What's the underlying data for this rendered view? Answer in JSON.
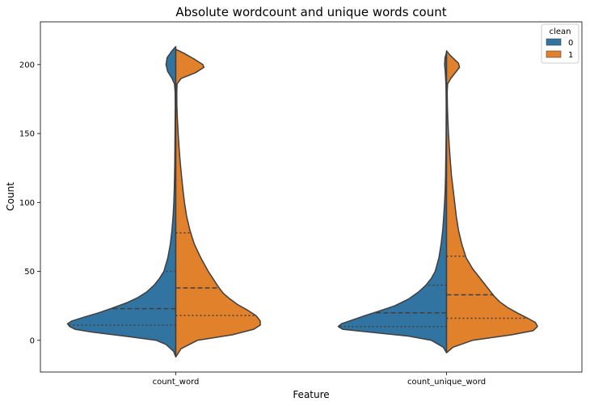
{
  "chart_data": {
    "type": "violin",
    "split": true,
    "title": "Absolute wordcount and unique words count",
    "xlabel": "Feature",
    "ylabel": "Count",
    "ylim": [
      -23,
      231
    ],
    "yticks": [
      0,
      50,
      100,
      150,
      200
    ],
    "categories": [
      "count_word",
      "count_unique_word"
    ],
    "legend": {
      "title": "clean",
      "position": "top-right",
      "entries": [
        {
          "label": "0",
          "color": "#3274a1"
        },
        {
          "label": "1",
          "color": "#e1812c"
        }
      ]
    },
    "violins": [
      {
        "category": "count_word",
        "hue": "0",
        "color": "#3274a1",
        "profile": [
          [
            -12,
            0
          ],
          [
            -8,
            0.02
          ],
          [
            -3,
            0.09
          ],
          [
            0,
            0.18
          ],
          [
            3,
            0.47
          ],
          [
            6,
            0.78
          ],
          [
            8,
            0.93
          ],
          [
            10,
            0.98
          ],
          [
            12,
            1.0
          ],
          [
            14,
            0.96
          ],
          [
            17,
            0.84
          ],
          [
            20,
            0.71
          ],
          [
            23,
            0.6
          ],
          [
            27,
            0.46
          ],
          [
            31,
            0.35
          ],
          [
            35,
            0.27
          ],
          [
            40,
            0.2
          ],
          [
            45,
            0.15
          ],
          [
            50,
            0.11
          ],
          [
            60,
            0.073
          ],
          [
            70,
            0.05
          ],
          [
            80,
            0.035
          ],
          [
            90,
            0.025
          ],
          [
            100,
            0.018
          ],
          [
            110,
            0.014
          ],
          [
            120,
            0.011
          ],
          [
            130,
            0.009
          ],
          [
            140,
            0.008
          ],
          [
            150,
            0.007
          ],
          [
            160,
            0.006
          ],
          [
            170,
            0.005
          ],
          [
            180,
            0.006
          ],
          [
            186,
            0.012
          ],
          [
            190,
            0.035
          ],
          [
            195,
            0.075
          ],
          [
            200,
            0.09
          ],
          [
            205,
            0.08
          ],
          [
            210,
            0.035
          ],
          [
            213,
            0
          ]
        ],
        "quartiles": [
          11,
          23,
          50
        ]
      },
      {
        "category": "count_word",
        "hue": "1",
        "color": "#e1812c",
        "profile": [
          [
            -12,
            0
          ],
          [
            -6,
            0.05
          ],
          [
            0,
            0.2
          ],
          [
            4,
            0.52
          ],
          [
            8,
            0.72
          ],
          [
            11,
            0.78
          ],
          [
            14,
            0.78
          ],
          [
            18,
            0.74
          ],
          [
            22,
            0.66
          ],
          [
            26,
            0.57
          ],
          [
            30,
            0.5
          ],
          [
            34,
            0.44
          ],
          [
            38,
            0.4
          ],
          [
            44,
            0.35
          ],
          [
            50,
            0.3
          ],
          [
            60,
            0.23
          ],
          [
            70,
            0.17
          ],
          [
            80,
            0.13
          ],
          [
            90,
            0.1
          ],
          [
            100,
            0.08
          ],
          [
            110,
            0.065
          ],
          [
            120,
            0.052
          ],
          [
            130,
            0.04
          ],
          [
            140,
            0.03
          ],
          [
            150,
            0.022
          ],
          [
            160,
            0.015
          ],
          [
            170,
            0.01
          ],
          [
            180,
            0.009
          ],
          [
            186,
            0.012
          ],
          [
            190,
            0.05
          ],
          [
            194,
            0.18
          ],
          [
            198,
            0.26
          ],
          [
            200,
            0.25
          ],
          [
            204,
            0.17
          ],
          [
            208,
            0.08
          ],
          [
            210,
            0.03
          ],
          [
            211,
            0
          ]
        ],
        "quartiles": [
          18,
          38,
          78
        ]
      },
      {
        "category": "count_unique_word",
        "hue": "0",
        "color": "#3274a1",
        "profile": [
          [
            -9,
            0
          ],
          [
            -5,
            0.03
          ],
          [
            0,
            0.14
          ],
          [
            3,
            0.35
          ],
          [
            6,
            0.72
          ],
          [
            8,
            0.96
          ],
          [
            10,
            1.0
          ],
          [
            12,
            0.97
          ],
          [
            15,
            0.86
          ],
          [
            18,
            0.75
          ],
          [
            21,
            0.63
          ],
          [
            25,
            0.48
          ],
          [
            30,
            0.35
          ],
          [
            35,
            0.26
          ],
          [
            40,
            0.19
          ],
          [
            45,
            0.14
          ],
          [
            50,
            0.105
          ],
          [
            60,
            0.07
          ],
          [
            70,
            0.05
          ],
          [
            80,
            0.035
          ],
          [
            90,
            0.026
          ],
          [
            100,
            0.018
          ],
          [
            110,
            0.012
          ],
          [
            120,
            0.009
          ],
          [
            130,
            0.007
          ],
          [
            140,
            0.005
          ],
          [
            150,
            0.004
          ],
          [
            170,
            0.003
          ],
          [
            185,
            0.005
          ],
          [
            195,
            0.012
          ],
          [
            200,
            0.018
          ],
          [
            205,
            0.014
          ],
          [
            209,
            0
          ]
        ],
        "quartiles": [
          10,
          20,
          40
        ]
      },
      {
        "category": "count_unique_word",
        "hue": "1",
        "color": "#e1812c",
        "profile": [
          [
            -9,
            0
          ],
          [
            -5,
            0.06
          ],
          [
            0,
            0.24
          ],
          [
            4,
            0.6
          ],
          [
            7,
            0.8
          ],
          [
            10,
            0.84
          ],
          [
            13,
            0.82
          ],
          [
            16,
            0.75
          ],
          [
            20,
            0.65
          ],
          [
            24,
            0.56
          ],
          [
            28,
            0.49
          ],
          [
            32,
            0.44
          ],
          [
            36,
            0.4
          ],
          [
            40,
            0.36
          ],
          [
            46,
            0.3
          ],
          [
            52,
            0.24
          ],
          [
            60,
            0.18
          ],
          [
            70,
            0.14
          ],
          [
            80,
            0.11
          ],
          [
            90,
            0.09
          ],
          [
            100,
            0.075
          ],
          [
            110,
            0.06
          ],
          [
            120,
            0.045
          ],
          [
            130,
            0.035
          ],
          [
            140,
            0.026
          ],
          [
            150,
            0.018
          ],
          [
            160,
            0.012
          ],
          [
            170,
            0.008
          ],
          [
            180,
            0.006
          ],
          [
            186,
            0.01
          ],
          [
            190,
            0.04
          ],
          [
            195,
            0.09
          ],
          [
            198,
            0.12
          ],
          [
            201,
            0.11
          ],
          [
            204,
            0.07
          ],
          [
            207,
            0.03
          ],
          [
            210,
            0
          ]
        ],
        "quartiles": [
          16,
          33,
          61
        ]
      }
    ]
  }
}
